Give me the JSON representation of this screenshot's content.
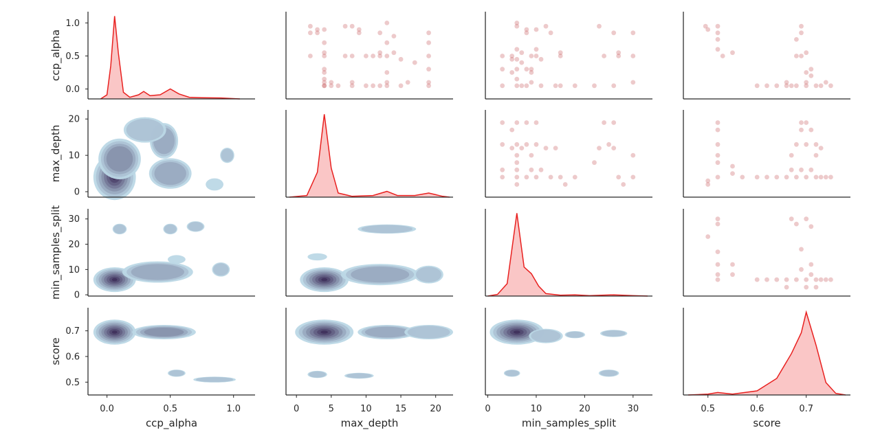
{
  "chart_data": {
    "type": "pairplot",
    "grid": false,
    "variables": [
      "ccp_alpha",
      "max_depth",
      "min_samples_split",
      "score"
    ],
    "axis_labels": {
      "ccp_alpha": "ccp_alpha",
      "max_depth": "max_depth",
      "min_samples_split": "min_samples_split",
      "score": "score"
    },
    "x_ticks": {
      "ccp_alpha": [
        "0.0",
        "0.5",
        "1.0"
      ],
      "max_depth": [
        "0",
        "5",
        "10",
        "15",
        "20"
      ],
      "min_samples_split": [
        "0",
        "10",
        "20",
        "30"
      ],
      "score": [
        "0.5",
        "0.6",
        "0.7"
      ]
    },
    "y_ticks": {
      "ccp_alpha": [
        "0.0",
        "0.5",
        "1.0"
      ],
      "max_depth": [
        "0",
        "10",
        "20"
      ],
      "min_samples_split": [
        "0",
        "10",
        "20",
        "30"
      ],
      "score": [
        "0.5",
        "0.6",
        "0.7"
      ]
    },
    "ranges": {
      "ccp_alpha": [
        -0.15,
        1.17
      ],
      "max_depth": [
        -1.5,
        22.5
      ],
      "min_samples_split": [
        -0.5,
        34
      ],
      "score": [
        0.45,
        0.79
      ]
    },
    "plot_kinds": {
      "diagonal": "kde",
      "upper": "scatter",
      "lower": "kde_contour"
    },
    "colors": {
      "kde_line": "#e8201f",
      "kde_fill": "#f8b3b3",
      "scatter": "#c44e52",
      "contour_light": "#bcd8e6",
      "contour_dark": "#3e2f5b"
    },
    "diagonal_kde": {
      "ccp_alpha": [
        [
          -0.05,
          0
        ],
        [
          0.0,
          0.05
        ],
        [
          0.03,
          0.4
        ],
        [
          0.06,
          1.0
        ],
        [
          0.09,
          0.55
        ],
        [
          0.13,
          0.08
        ],
        [
          0.18,
          0.02
        ],
        [
          0.25,
          0.05
        ],
        [
          0.29,
          0.09
        ],
        [
          0.34,
          0.04
        ],
        [
          0.42,
          0.05
        ],
        [
          0.5,
          0.12
        ],
        [
          0.57,
          0.06
        ],
        [
          0.65,
          0.02
        ],
        [
          0.75,
          0.015
        ],
        [
          0.9,
          0.012
        ],
        [
          1.05,
          0.0
        ]
      ],
      "max_depth": [
        [
          -1,
          0
        ],
        [
          1.5,
          0.02
        ],
        [
          3,
          0.3
        ],
        [
          4,
          1.0
        ],
        [
          5,
          0.35
        ],
        [
          6,
          0.05
        ],
        [
          8,
          0.01
        ],
        [
          11,
          0.02
        ],
        [
          13,
          0.07
        ],
        [
          14.5,
          0.02
        ],
        [
          17,
          0.02
        ],
        [
          19,
          0.05
        ],
        [
          21,
          0.01
        ],
        [
          22,
          0.0
        ]
      ],
      "min_samples_split": [
        [
          0,
          0
        ],
        [
          2,
          0.02
        ],
        [
          4,
          0.15
        ],
        [
          6,
          1.0
        ],
        [
          7.5,
          0.35
        ],
        [
          9,
          0.27
        ],
        [
          10.5,
          0.12
        ],
        [
          12,
          0.03
        ],
        [
          15,
          0.01
        ],
        [
          18,
          0.015
        ],
        [
          21,
          0.005
        ],
        [
          26,
          0.015
        ],
        [
          30,
          0.005
        ],
        [
          33,
          0.0
        ]
      ],
      "score": [
        [
          0.46,
          0
        ],
        [
          0.5,
          0.01
        ],
        [
          0.52,
          0.03
        ],
        [
          0.55,
          0.01
        ],
        [
          0.6,
          0.05
        ],
        [
          0.64,
          0.2
        ],
        [
          0.67,
          0.5
        ],
        [
          0.69,
          0.75
        ],
        [
          0.7,
          1.0
        ],
        [
          0.72,
          0.6
        ],
        [
          0.74,
          0.15
        ],
        [
          0.76,
          0.02
        ],
        [
          0.78,
          0.0
        ]
      ]
    },
    "scatter_points": {
      "max_depth_vs_ccp_alpha": [
        [
          2,
          0.95
        ],
        [
          2,
          0.85
        ],
        [
          2,
          0.5
        ],
        [
          3,
          0.9
        ],
        [
          3,
          0.85
        ],
        [
          4,
          0.5
        ],
        [
          4,
          0.3
        ],
        [
          4,
          0.25
        ],
        [
          4,
          0.1
        ],
        [
          4,
          0.05
        ],
        [
          4,
          0.05
        ],
        [
          4,
          0.15
        ],
        [
          4,
          0.55
        ],
        [
          4,
          0.7
        ],
        [
          4,
          0.9
        ],
        [
          5,
          0.05
        ],
        [
          5,
          0.1
        ],
        [
          6,
          0.05
        ],
        [
          7,
          0.95
        ],
        [
          7,
          0.5
        ],
        [
          8,
          0.95
        ],
        [
          8,
          0.5
        ],
        [
          8,
          0.1
        ],
        [
          8,
          0.05
        ],
        [
          9,
          0.9
        ],
        [
          9,
          0.85
        ],
        [
          10,
          0.5
        ],
        [
          10,
          0.05
        ],
        [
          11,
          0.5
        ],
        [
          11,
          0.05
        ],
        [
          12,
          0.85
        ],
        [
          12,
          0.5
        ],
        [
          12,
          0.55
        ],
        [
          12,
          0.05
        ],
        [
          13,
          1.0
        ],
        [
          13,
          0.7
        ],
        [
          13,
          0.5
        ],
        [
          13,
          0.25
        ],
        [
          13,
          0.05
        ],
        [
          13,
          0.1
        ],
        [
          14,
          0.8
        ],
        [
          14,
          0.55
        ],
        [
          15,
          0.45
        ],
        [
          15,
          0.05
        ],
        [
          16,
          0.1
        ],
        [
          17,
          0.4
        ],
        [
          19,
          0.85
        ],
        [
          19,
          0.7
        ],
        [
          19,
          0.5
        ],
        [
          19,
          0.3
        ],
        [
          19,
          0.1
        ],
        [
          19,
          0.05
        ]
      ],
      "min_samples_split_vs_ccp_alpha": [
        [
          3,
          0.5
        ],
        [
          3,
          0.3
        ],
        [
          3,
          0.05
        ],
        [
          5,
          0.5
        ],
        [
          5,
          0.45
        ],
        [
          5,
          0.25
        ],
        [
          6,
          1.0
        ],
        [
          6,
          0.95
        ],
        [
          6,
          0.6
        ],
        [
          6,
          0.45
        ],
        [
          6,
          0.3
        ],
        [
          6,
          0.15
        ],
        [
          6,
          0.05
        ],
        [
          7,
          0.55
        ],
        [
          7,
          0.4
        ],
        [
          7,
          0.05
        ],
        [
          8,
          0.9
        ],
        [
          8,
          0.85
        ],
        [
          8,
          0.3
        ],
        [
          8,
          0.05
        ],
        [
          9,
          0.5
        ],
        [
          9,
          0.3
        ],
        [
          9,
          0.25
        ],
        [
          9,
          0.1
        ],
        [
          10,
          0.9
        ],
        [
          10,
          0.6
        ],
        [
          10,
          0.5
        ],
        [
          11,
          0.45
        ],
        [
          11,
          0.05
        ],
        [
          12,
          0.95
        ],
        [
          13,
          0.85
        ],
        [
          14,
          0.05
        ],
        [
          15,
          0.55
        ],
        [
          15,
          0.5
        ],
        [
          15,
          0.05
        ],
        [
          18,
          0.05
        ],
        [
          22,
          0.05
        ],
        [
          23,
          0.95
        ],
        [
          24,
          0.5
        ],
        [
          26,
          0.85
        ],
        [
          26,
          0.05
        ],
        [
          27,
          0.5
        ],
        [
          27,
          0.55
        ],
        [
          30,
          0.85
        ],
        [
          30,
          0.5
        ],
        [
          30,
          0.1
        ]
      ],
      "score_vs_ccp_alpha": [
        [
          0.495,
          0.95
        ],
        [
          0.5,
          0.9
        ],
        [
          0.52,
          0.95
        ],
        [
          0.52,
          0.85
        ],
        [
          0.52,
          0.75
        ],
        [
          0.52,
          0.6
        ],
        [
          0.53,
          0.5
        ],
        [
          0.55,
          0.55
        ],
        [
          0.6,
          0.05
        ],
        [
          0.62,
          0.05
        ],
        [
          0.64,
          0.05
        ],
        [
          0.66,
          0.05
        ],
        [
          0.67,
          0.05
        ],
        [
          0.68,
          0.5
        ],
        [
          0.68,
          0.75
        ],
        [
          0.69,
          0.95
        ],
        [
          0.69,
          0.85
        ],
        [
          0.69,
          0.5
        ],
        [
          0.7,
          0.55
        ],
        [
          0.7,
          0.25
        ],
        [
          0.7,
          0.1
        ],
        [
          0.71,
          0.3
        ],
        [
          0.71,
          0.2
        ],
        [
          0.72,
          0.05
        ],
        [
          0.73,
          0.05
        ],
        [
          0.74,
          0.1
        ],
        [
          0.75,
          0.05
        ],
        [
          0.7,
          0.05
        ],
        [
          0.68,
          0.05
        ],
        [
          0.66,
          0.1
        ]
      ],
      "score_vs_max_depth": [
        [
          0.5,
          3
        ],
        [
          0.5,
          2
        ],
        [
          0.52,
          19
        ],
        [
          0.52,
          17
        ],
        [
          0.52,
          13
        ],
        [
          0.52,
          10
        ],
        [
          0.52,
          8
        ],
        [
          0.52,
          4
        ],
        [
          0.55,
          7
        ],
        [
          0.55,
          5
        ],
        [
          0.57,
          4
        ],
        [
          0.6,
          4
        ],
        [
          0.62,
          4
        ],
        [
          0.64,
          4
        ],
        [
          0.66,
          4
        ],
        [
          0.67,
          6
        ],
        [
          0.67,
          10
        ],
        [
          0.68,
          4
        ],
        [
          0.68,
          13
        ],
        [
          0.69,
          19
        ],
        [
          0.69,
          17
        ],
        [
          0.69,
          6
        ],
        [
          0.7,
          4
        ],
        [
          0.7,
          13
        ],
        [
          0.7,
          19
        ],
        [
          0.71,
          6
        ],
        [
          0.71,
          17
        ],
        [
          0.72,
          4
        ],
        [
          0.73,
          4
        ],
        [
          0.74,
          4
        ],
        [
          0.75,
          4
        ],
        [
          0.72,
          13
        ],
        [
          0.72,
          10
        ],
        [
          0.73,
          12
        ]
      ],
      "min_samples_split_vs_max_depth": [
        [
          3,
          19
        ],
        [
          3,
          13
        ],
        [
          3,
          6
        ],
        [
          3,
          4
        ],
        [
          5,
          17
        ],
        [
          5,
          12
        ],
        [
          6,
          19
        ],
        [
          6,
          13
        ],
        [
          6,
          10
        ],
        [
          6,
          8
        ],
        [
          6,
          6
        ],
        [
          6,
          4
        ],
        [
          6,
          2
        ],
        [
          7,
          12
        ],
        [
          8,
          19
        ],
        [
          8,
          13
        ],
        [
          8,
          4
        ],
        [
          9,
          10
        ],
        [
          9,
          6
        ],
        [
          10,
          19
        ],
        [
          10,
          13
        ],
        [
          10,
          4
        ],
        [
          11,
          6
        ],
        [
          12,
          12
        ],
        [
          13,
          4
        ],
        [
          14,
          12
        ],
        [
          15,
          4
        ],
        [
          16,
          2
        ],
        [
          18,
          4
        ],
        [
          22,
          8
        ],
        [
          23,
          12
        ],
        [
          24,
          19
        ],
        [
          25,
          13
        ],
        [
          26,
          19
        ],
        [
          26,
          12
        ],
        [
          27,
          4
        ],
        [
          28,
          2
        ],
        [
          30,
          10
        ],
        [
          30,
          4
        ]
      ],
      "score_vs_min_samples_split": [
        [
          0.5,
          23
        ],
        [
          0.52,
          30
        ],
        [
          0.52,
          28
        ],
        [
          0.52,
          17
        ],
        [
          0.52,
          12
        ],
        [
          0.52,
          8
        ],
        [
          0.52,
          6
        ],
        [
          0.55,
          12
        ],
        [
          0.55,
          8
        ],
        [
          0.6,
          6
        ],
        [
          0.62,
          6
        ],
        [
          0.64,
          6
        ],
        [
          0.66,
          6
        ],
        [
          0.67,
          30
        ],
        [
          0.68,
          28
        ],
        [
          0.68,
          6
        ],
        [
          0.69,
          18
        ],
        [
          0.69,
          10
        ],
        [
          0.7,
          30
        ],
        [
          0.7,
          6
        ],
        [
          0.7,
          3
        ],
        [
          0.71,
          12
        ],
        [
          0.71,
          8
        ],
        [
          0.72,
          6
        ],
        [
          0.73,
          6
        ],
        [
          0.74,
          6
        ],
        [
          0.75,
          6
        ],
        [
          0.72,
          3
        ],
        [
          0.66,
          3
        ],
        [
          0.71,
          27
        ]
      ]
    },
    "kde_contour_blobs": {
      "ccp_alpha_vs_max_depth": [
        [
          0.06,
          4,
          0.12,
          4.5,
          1.0
        ],
        [
          0.1,
          9,
          0.12,
          4,
          0.45
        ],
        [
          0.45,
          14,
          0.08,
          3.5,
          0.35
        ],
        [
          0.5,
          5,
          0.12,
          3,
          0.35
        ],
        [
          0.3,
          17,
          0.12,
          2.5,
          0.25
        ],
        [
          0.95,
          10,
          0.04,
          1.5,
          0.2
        ],
        [
          0.85,
          2,
          0.05,
          1.2,
          0.15
        ]
      ],
      "ccp_alpha_vs_min_samples_split": [
        [
          0.06,
          6,
          0.12,
          3.5,
          1.0
        ],
        [
          0.4,
          9,
          0.2,
          3,
          0.35
        ],
        [
          0.9,
          10,
          0.05,
          2,
          0.25
        ],
        [
          0.1,
          26,
          0.04,
          1.5,
          0.2
        ],
        [
          0.5,
          26,
          0.04,
          1.5,
          0.2
        ],
        [
          0.7,
          27,
          0.05,
          1.5,
          0.2
        ],
        [
          0.55,
          14,
          0.05,
          1.2,
          0.15
        ]
      ],
      "ccp_alpha_vs_score": [
        [
          0.06,
          0.695,
          0.12,
          0.035,
          1.0
        ],
        [
          0.45,
          0.695,
          0.18,
          0.02,
          0.45
        ],
        [
          0.55,
          0.535,
          0.05,
          0.01,
          0.25
        ],
        [
          0.85,
          0.51,
          0.12,
          0.008,
          0.2
        ]
      ],
      "max_depth_vs_min_samples_split": [
        [
          4,
          6,
          2.5,
          3.5,
          1.0
        ],
        [
          12,
          8,
          4,
          3,
          0.4
        ],
        [
          19,
          8,
          1.5,
          2.5,
          0.3
        ],
        [
          13,
          26,
          3,
          1.3,
          0.25
        ],
        [
          3,
          15,
          1,
          1,
          0.15
        ]
      ],
      "max_depth_vs_score": [
        [
          4,
          0.695,
          3,
          0.035,
          1.0
        ],
        [
          13,
          0.695,
          3,
          0.02,
          0.4
        ],
        [
          19,
          0.695,
          2.5,
          0.02,
          0.3
        ],
        [
          3,
          0.53,
          1,
          0.01,
          0.2
        ],
        [
          9,
          0.525,
          1.5,
          0.008,
          0.2
        ]
      ],
      "min_samples_split_vs_score": [
        [
          6,
          0.695,
          4,
          0.035,
          1.0
        ],
        [
          12,
          0.68,
          2.5,
          0.02,
          0.3
        ],
        [
          18,
          0.685,
          1.5,
          0.01,
          0.2
        ],
        [
          26,
          0.69,
          2,
          0.01,
          0.2
        ],
        [
          5,
          0.535,
          1.2,
          0.01,
          0.2
        ],
        [
          25,
          0.535,
          1.5,
          0.01,
          0.2
        ]
      ]
    }
  }
}
